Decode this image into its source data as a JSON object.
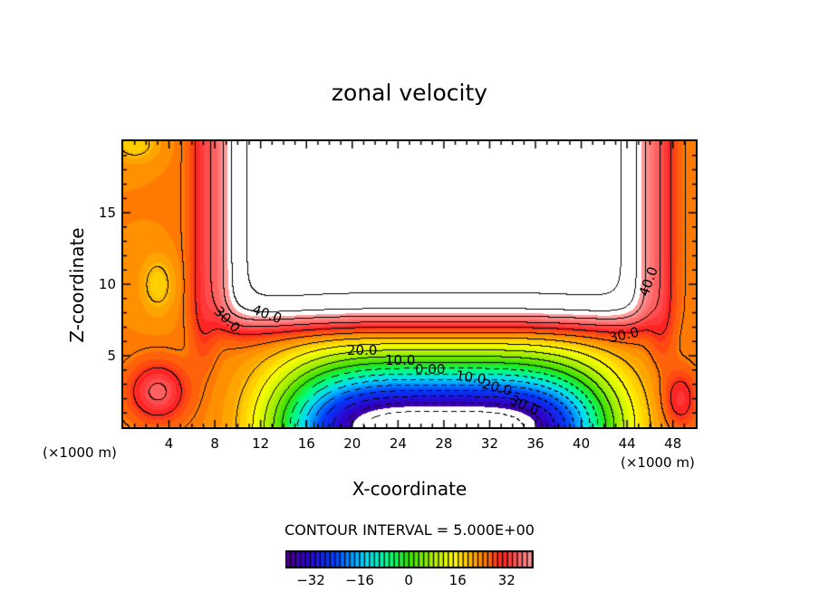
{
  "chart_data": {
    "type": "heatmap",
    "subtype": "filled-contour",
    "title": "zonal velocity",
    "xlabel": "X-coordinate",
    "ylabel": "Z-coordinate",
    "x_unit_label": "(×1000 m)",
    "xlim": [
      0,
      50
    ],
    "ylim": [
      0,
      20
    ],
    "x_ticks": [
      "4",
      "8",
      "12",
      "16",
      "20",
      "24",
      "28",
      "32",
      "36",
      "40",
      "44",
      "48"
    ],
    "y_ticks": [
      "5",
      "10",
      "15"
    ],
    "contour_interval_text": "CONTOUR INTERVAL = 5.000E+00",
    "contour_interval": 5,
    "colorbar": {
      "range": [
        -40,
        40.5
      ],
      "ticks": [
        "−32",
        "−16",
        "0",
        "16",
        "32"
      ],
      "tick_values": [
        -32,
        -16,
        0,
        16,
        32
      ]
    },
    "contour_labels": [
      "40.0",
      "30.0",
      "30.0",
      "40.0",
      "20.0",
      "10.0",
      "0.00",
      "10.0",
      "20.0",
      "30.0"
    ],
    "features": {
      "upper_jet_max_exceeds": 40,
      "lower_reverse_flow_min_below": -35,
      "background_value": 24
    }
  }
}
